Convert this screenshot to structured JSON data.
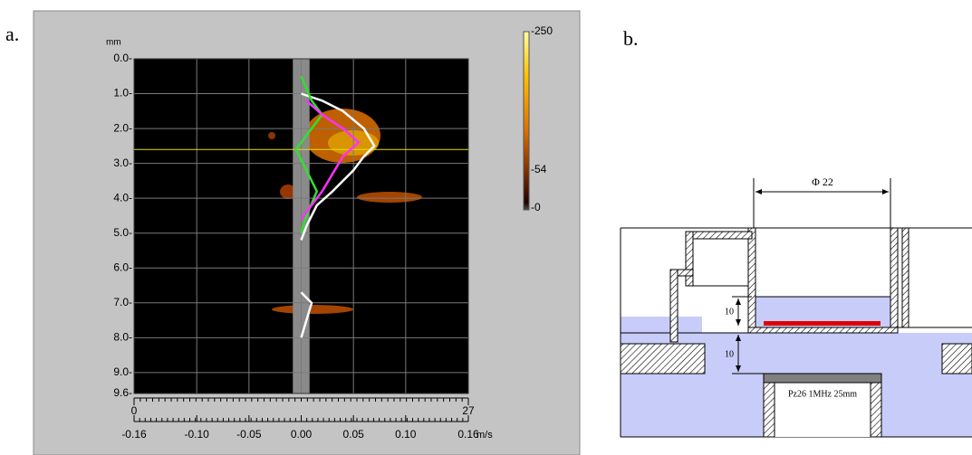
{
  "chart_data": {
    "type": "line",
    "panel_label": "a.",
    "ylabel": "mm",
    "xlabel": "m/s",
    "xlim": [
      -0.16,
      0.16
    ],
    "xticks": [
      -0.16,
      {
        "value": -0.1,
        "label": "-0.10"
      },
      -0.05,
      {
        "value": 0,
        "label": "0.00"
      },
      0.05,
      {
        "value": 0.1,
        "label": "0.10"
      },
      0.16
    ],
    "ylim": [
      0,
      9.6
    ],
    "y_inverted": true,
    "yticks": [
      {
        "value": 0,
        "label": "0.0-"
      },
      {
        "value": 1,
        "label": "1.0-"
      },
      {
        "value": 2,
        "label": "2.0-"
      },
      {
        "value": 3,
        "label": "3.0-"
      },
      {
        "value": 4,
        "label": "4.0-"
      },
      {
        "value": 5,
        "label": "5.0-"
      },
      {
        "value": 6,
        "label": "6.0-"
      },
      {
        "value": 7,
        "label": "7.0-"
      },
      {
        "value": 8,
        "label": "8.0-"
      },
      {
        "value": 9,
        "label": "9.0-"
      },
      {
        "value": 9.6,
        "label": "9.6-"
      }
    ],
    "x2lim": [
      0,
      27
    ],
    "x2ticks": [
      0,
      27
    ],
    "grid": true,
    "hline": 2.6,
    "hline_color": "#e8e000",
    "band": [
      -0.008,
      0.008
    ],
    "colorbar": {
      "lim": [
        0,
        250
      ],
      "ticks": [
        {
          "value": 0,
          "label": "-0"
        },
        {
          "value": 54,
          "label": "-54"
        },
        {
          "value": 250,
          "label": "-250"
        }
      ]
    },
    "series": [
      {
        "color": "#ffffff",
        "x": [
          0.0,
          0.02,
          0.04,
          0.06,
          0.07,
          0.06,
          0.05,
          0.04,
          0.03,
          0.015,
          0.005,
          0.0,
          null,
          0.0,
          0.01,
          0.005,
          0.0
        ],
        "y": [
          1.0,
          1.2,
          1.5,
          2.0,
          2.5,
          2.8,
          3.2,
          3.5,
          3.8,
          4.2,
          4.8,
          5.2,
          null,
          6.7,
          7.0,
          7.5,
          8.0
        ]
      },
      {
        "color": "#30e030",
        "x": [
          0.0,
          0.01,
          0.02,
          0.005,
          -0.005,
          0.005,
          0.015,
          0.005,
          0.0
        ],
        "y": [
          0.5,
          1.2,
          1.6,
          2.2,
          2.6,
          3.2,
          3.8,
          4.5,
          5.0
        ]
      },
      {
        "color": "#ff30ff",
        "x": [
          0.005,
          0.02,
          0.04,
          0.055,
          0.04,
          0.03,
          0.02,
          0.01,
          0.0
        ],
        "y": [
          1.2,
          1.6,
          2.0,
          2.4,
          2.8,
          3.3,
          3.8,
          4.2,
          4.6
        ]
      }
    ]
  },
  "diagram": {
    "panel_label": "b.",
    "diameter": "Φ 22",
    "dim_upper": "10",
    "dim_lower": "10",
    "transducer": "Pz26 1MHz 25mm"
  }
}
